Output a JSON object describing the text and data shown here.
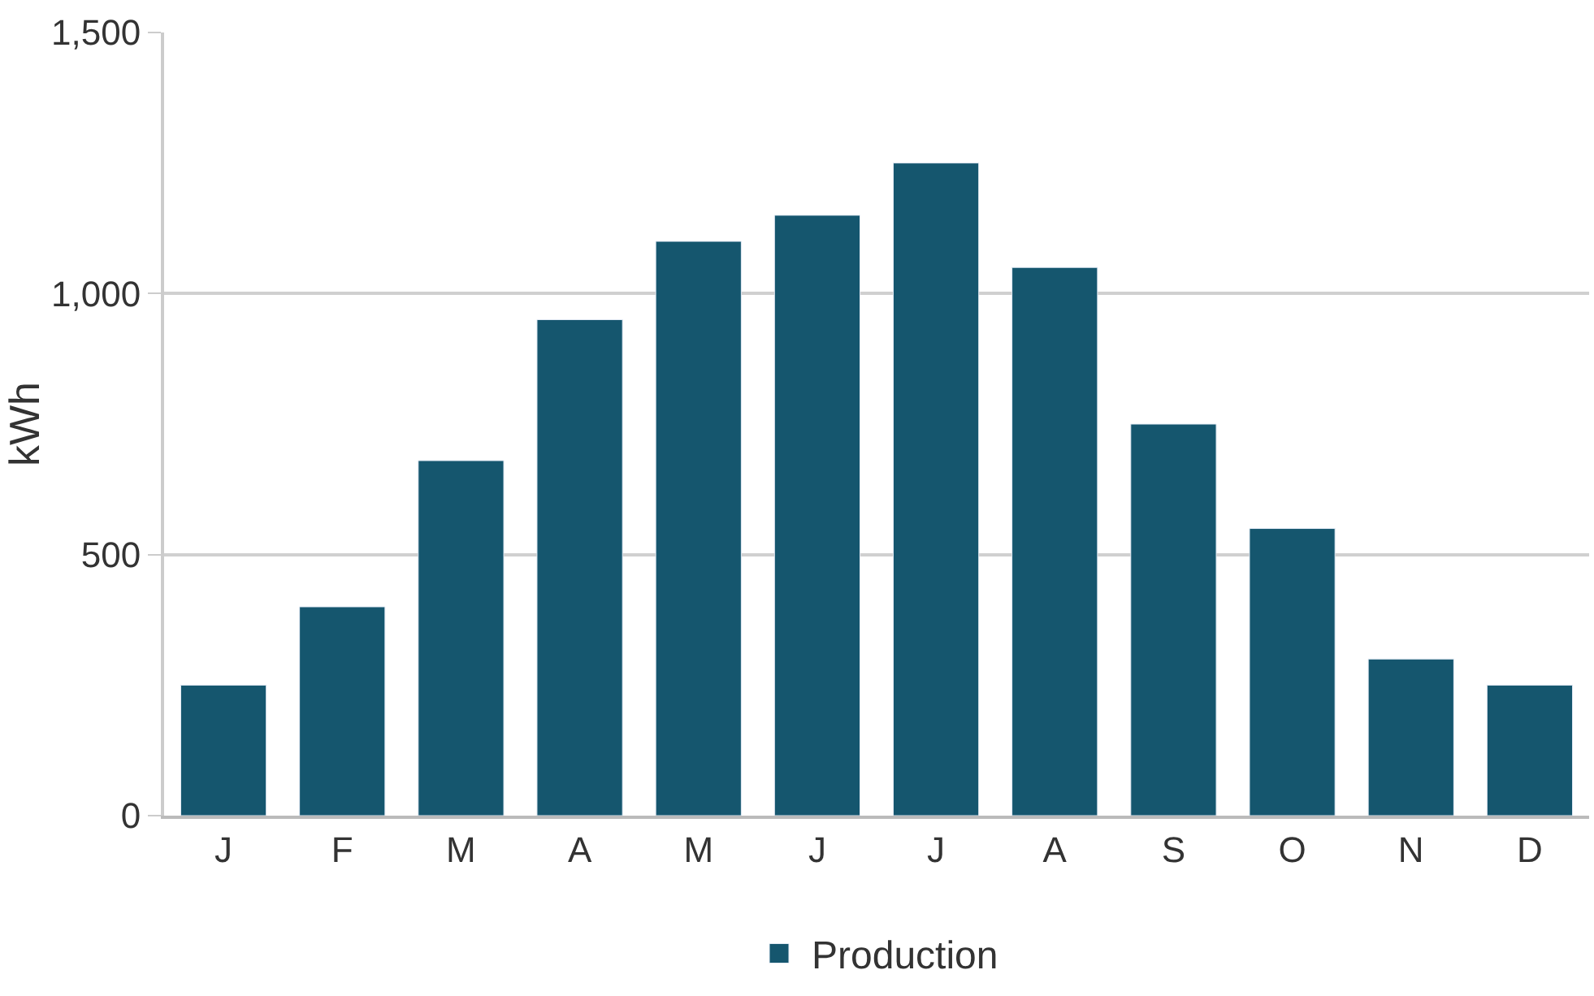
{
  "chart_data": {
    "type": "bar",
    "ylabel": "kWh",
    "categories": [
      "J",
      "F",
      "M",
      "A",
      "M",
      "J",
      "J",
      "A",
      "S",
      "O",
      "N",
      "D"
    ],
    "series": [
      {
        "name": "Production",
        "color": "#15566e",
        "values": [
          250,
          400,
          680,
          950,
          1100,
          1150,
          1250,
          1050,
          750,
          550,
          300,
          250
        ]
      }
    ],
    "ylim": [
      0,
      1500
    ],
    "yticks": [
      0,
      500,
      {
        "value": 1000,
        "label": "1,000"
      },
      {
        "value": 1500,
        "label": "1,500"
      }
    ],
    "grid": "y",
    "legend": "bottom"
  }
}
